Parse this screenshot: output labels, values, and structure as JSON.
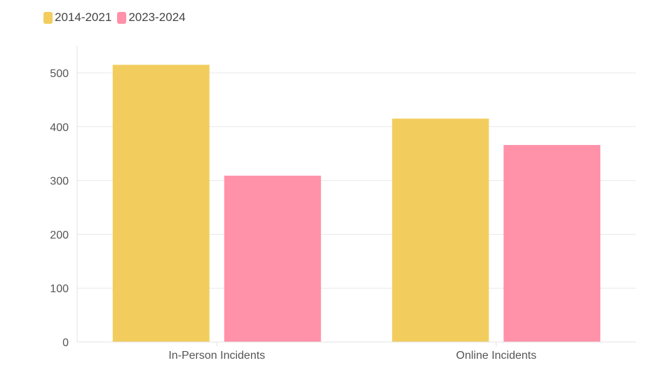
{
  "chart_data": {
    "type": "bar",
    "categories": [
      "In-Person Incidents",
      "Online Incidents"
    ],
    "series": [
      {
        "name": "2014-2021",
        "values": [
          515,
          415
        ],
        "color": "#f2cd5e"
      },
      {
        "name": "2023-2024",
        "values": [
          309,
          366
        ],
        "color": "#ff91a8"
      }
    ],
    "ylim": [
      0,
      550
    ],
    "yticks": [
      0,
      100,
      200,
      300,
      400,
      500
    ],
    "grid": true,
    "legend_position": "top-left"
  }
}
